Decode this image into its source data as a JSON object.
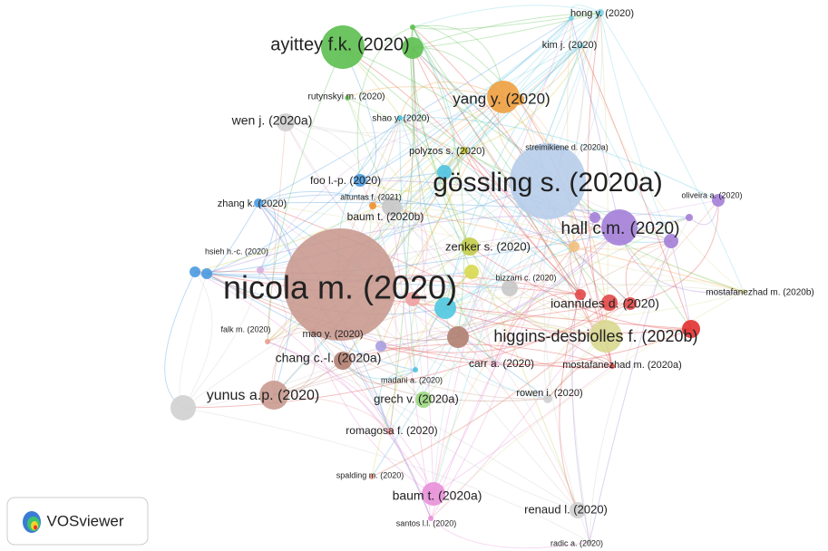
{
  "nodes": [
    {
      "label": "hong y. (2020)"
    },
    {
      "label": "kim j. (2020)"
    },
    {
      "label": "ayittey f.k. (2020)"
    },
    {
      "label": "rutynskyi m. (2020)"
    },
    {
      "label": "yang y. (2020)"
    },
    {
      "label": "wen j. (2020a)"
    },
    {
      "label": "shao y. (2020)"
    },
    {
      "label": "polyzos s. (2020)"
    },
    {
      "label": "streimikiene d. (2020a)"
    },
    {
      "label": "gössling s. (2020a)"
    },
    {
      "label": "foo l.-p. (2020)"
    },
    {
      "label": "oliveira a. (2020)"
    },
    {
      "label": "altuntas f. (2021)"
    },
    {
      "label": "zhang k. (2020)"
    },
    {
      "label": "baum t. (2020b)"
    },
    {
      "label": "hall c.m. (2020)"
    },
    {
      "label": "zenker s. (2020)"
    },
    {
      "label": "hsieh h.-c. (2020)"
    },
    {
      "label": "bizzarri c. (2020)"
    },
    {
      "label": "nicola m. (2020)"
    },
    {
      "label": "mostafanezhad m. (2020b)"
    },
    {
      "label": "ioannides d. (2020)"
    },
    {
      "label": "falk m. (2020)"
    },
    {
      "label": "mao y. (2020)"
    },
    {
      "label": "higgins-desbiolles f. (2020b)"
    },
    {
      "label": "chang c.-l. (2020a)"
    },
    {
      "label": "carr a. (2020)"
    },
    {
      "label": "mostafanezhad m. (2020a)"
    },
    {
      "label": "madani a. (2020)"
    },
    {
      "label": "yunus a.p. (2020)"
    },
    {
      "label": "grech v. (2020a)"
    },
    {
      "label": "rowen i. (2020)"
    },
    {
      "label": "romagosa f. (2020)"
    },
    {
      "label": "spalding m. (2020)"
    },
    {
      "label": "baum t. (2020a)"
    },
    {
      "label": "renaud l. (2020)"
    },
    {
      "label": "santos l.l. (2020)"
    },
    {
      "label": "radic a. (2020)"
    }
  ],
  "logo": {
    "text": "VOSviewer"
  }
}
